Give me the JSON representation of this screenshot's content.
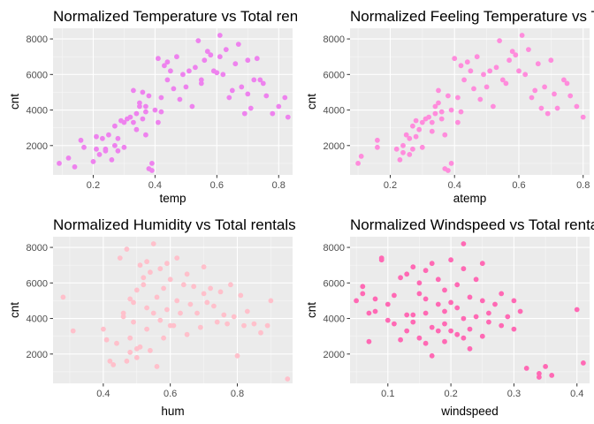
{
  "chart_data": [
    {
      "type": "scatter",
      "title": "Normalized Temperature vs Total rentals",
      "xlabel": "temp",
      "ylabel": "cnt",
      "xlim": [
        0.07,
        0.845
      ],
      "ylim": [
        350,
        8600
      ],
      "xticks": [
        "0.2",
        "0.4",
        "0.6",
        "0.8"
      ],
      "yticks": [
        "2000",
        "4000",
        "6000",
        "8000"
      ],
      "xtick_values": [
        0.2,
        0.4,
        0.6,
        0.8
      ],
      "ytick_values": [
        2000,
        4000,
        6000,
        8000
      ],
      "color": "#EE82EE",
      "x": [
        0.09,
        0.12,
        0.14,
        0.16,
        0.17,
        0.2,
        0.21,
        0.21,
        0.22,
        0.23,
        0.24,
        0.24,
        0.25,
        0.26,
        0.27,
        0.27,
        0.28,
        0.28,
        0.29,
        0.3,
        0.3,
        0.31,
        0.32,
        0.33,
        0.33,
        0.34,
        0.34,
        0.35,
        0.35,
        0.36,
        0.37,
        0.37,
        0.38,
        0.38,
        0.39,
        0.39,
        0.4,
        0.41,
        0.41,
        0.42,
        0.42,
        0.43,
        0.44,
        0.44,
        0.45,
        0.46,
        0.47,
        0.48,
        0.49,
        0.5,
        0.51,
        0.52,
        0.53,
        0.54,
        0.55,
        0.55,
        0.56,
        0.57,
        0.58,
        0.59,
        0.6,
        0.61,
        0.61,
        0.62,
        0.63,
        0.64,
        0.65,
        0.66,
        0.67,
        0.68,
        0.69,
        0.7,
        0.7,
        0.71,
        0.72,
        0.73,
        0.74,
        0.75,
        0.76,
        0.78,
        0.8,
        0.82,
        0.83,
        0.36,
        0.37
      ],
      "y": [
        1000,
        1300,
        800,
        2300,
        1900,
        1100,
        1800,
        2500,
        1500,
        2400,
        1700,
        1800,
        2600,
        1200,
        2000,
        3100,
        1700,
        2400,
        3400,
        3300,
        1900,
        3500,
        3600,
        3300,
        5100,
        2900,
        3800,
        4400,
        4200,
        3500,
        2600,
        3900,
        700,
        4800,
        600,
        1000,
        4000,
        6900,
        3300,
        3900,
        4700,
        6500,
        5700,
        6700,
        6200,
        5200,
        7000,
        4600,
        6000,
        5300,
        6200,
        4200,
        6400,
        7900,
        5700,
        5500,
        6800,
        7300,
        7100,
        6200,
        6100,
        7000,
        8200,
        6000,
        7400,
        4700,
        5100,
        6600,
        7700,
        5300,
        3800,
        6800,
        4900,
        4100,
        5700,
        6900,
        5700,
        5500,
        4800,
        3800,
        4200,
        4700,
        3600,
        5000,
        4200
      ]
    },
    {
      "type": "scatter",
      "title": "Normalized Feeling Temperature vs Total rentals",
      "xlabel": "atemp",
      "ylabel": "cnt",
      "xlim": [
        0.075,
        0.82
      ],
      "ylim": [
        350,
        8600
      ],
      "xticks": [
        "0.2",
        "0.4",
        "0.6",
        "0.8"
      ],
      "yticks": [
        "2000",
        "4000",
        "6000",
        "8000"
      ],
      "xtick_values": [
        0.2,
        0.4,
        0.6,
        0.8
      ],
      "ytick_values": [
        2000,
        4000,
        6000,
        8000
      ],
      "color": "#FF8CDC",
      "x": [
        0.1,
        0.11,
        0.16,
        0.16,
        0.22,
        0.23,
        0.24,
        0.24,
        0.25,
        0.26,
        0.26,
        0.27,
        0.27,
        0.28,
        0.28,
        0.29,
        0.3,
        0.3,
        0.31,
        0.32,
        0.33,
        0.33,
        0.34,
        0.34,
        0.35,
        0.35,
        0.36,
        0.36,
        0.37,
        0.37,
        0.38,
        0.38,
        0.39,
        0.39,
        0.4,
        0.41,
        0.41,
        0.42,
        0.42,
        0.43,
        0.44,
        0.45,
        0.46,
        0.47,
        0.48,
        0.49,
        0.5,
        0.51,
        0.52,
        0.53,
        0.54,
        0.55,
        0.56,
        0.57,
        0.58,
        0.59,
        0.6,
        0.61,
        0.62,
        0.63,
        0.64,
        0.65,
        0.66,
        0.67,
        0.68,
        0.69,
        0.7,
        0.71,
        0.72,
        0.74,
        0.75,
        0.76,
        0.78,
        0.8
      ],
      "y": [
        1000,
        1400,
        1900,
        2300,
        1800,
        1200,
        2000,
        1600,
        2600,
        2400,
        1500,
        3100,
        1800,
        2500,
        3400,
        2900,
        3300,
        1900,
        3500,
        3600,
        3300,
        2800,
        3800,
        4200,
        4400,
        5100,
        3500,
        3900,
        2600,
        700,
        4800,
        600,
        1000,
        4000,
        6900,
        4700,
        3300,
        3900,
        6500,
        5700,
        6700,
        6200,
        5200,
        7000,
        4600,
        6000,
        5300,
        6200,
        4200,
        6400,
        7900,
        5700,
        5500,
        6800,
        7300,
        7100,
        6200,
        8200,
        6000,
        7400,
        4700,
        5100,
        6600,
        4100,
        5300,
        3800,
        6800,
        4900,
        4100,
        5700,
        5500,
        4800,
        4200,
        3600
      ]
    },
    {
      "type": "scatter",
      "title": "Normalized Humidity vs Total rentals",
      "xlabel": "hum",
      "ylabel": "cnt",
      "xlim": [
        0.25,
        0.965
      ],
      "ylim": [
        350,
        8600
      ],
      "xticks": [
        "0.4",
        "0.6",
        "0.8"
      ],
      "yticks": [
        "2000",
        "4000",
        "6000",
        "8000"
      ],
      "xtick_values": [
        0.4,
        0.6,
        0.8
      ],
      "ytick_values": [
        2000,
        4000,
        6000,
        8000
      ],
      "color": "#FFC0CB",
      "x": [
        0.28,
        0.31,
        0.4,
        0.41,
        0.42,
        0.43,
        0.44,
        0.45,
        0.46,
        0.47,
        0.47,
        0.48,
        0.48,
        0.49,
        0.49,
        0.5,
        0.5,
        0.51,
        0.51,
        0.52,
        0.52,
        0.53,
        0.53,
        0.54,
        0.54,
        0.55,
        0.55,
        0.56,
        0.56,
        0.57,
        0.57,
        0.58,
        0.58,
        0.59,
        0.59,
        0.6,
        0.61,
        0.62,
        0.62,
        0.63,
        0.64,
        0.65,
        0.65,
        0.66,
        0.67,
        0.68,
        0.69,
        0.7,
        0.7,
        0.71,
        0.72,
        0.73,
        0.74,
        0.75,
        0.76,
        0.77,
        0.78,
        0.79,
        0.8,
        0.81,
        0.82,
        0.83,
        0.85,
        0.87,
        0.89,
        0.9,
        0.95,
        0.46,
        0.48,
        0.5,
        0.53,
        0.6
      ],
      "y": [
        5200,
        3300,
        3400,
        2800,
        1600,
        1400,
        2600,
        7400,
        4100,
        1600,
        7900,
        2900,
        5100,
        4900,
        3800,
        5600,
        1800,
        7000,
        2400,
        6300,
        5900,
        3400,
        7200,
        2200,
        6600,
        8200,
        4300,
        5200,
        1300,
        6800,
        3900,
        5700,
        2900,
        7100,
        4500,
        6200,
        3600,
        5000,
        7400,
        4300,
        5900,
        3100,
        6500,
        4800,
        5800,
        4300,
        3500,
        5400,
        6900,
        4900,
        5700,
        4700,
        3800,
        5500,
        4200,
        3700,
        5900,
        4100,
        1900,
        5300,
        3600,
        4400,
        3700,
        3200,
        3600,
        5000,
        600,
        4300,
        2100,
        2300,
        4600,
        3600
      ]
    },
    {
      "type": "scatter",
      "title": "Normalized Windspeed vs Total rentals",
      "xlabel": "windspeed",
      "ylabel": "cnt",
      "xlim": [
        0.04,
        0.42
      ],
      "ylim": [
        350,
        8600
      ],
      "xticks": [
        "0.1",
        "0.2",
        "0.3",
        "0.4"
      ],
      "yticks": [
        "2000",
        "4000",
        "6000",
        "8000"
      ],
      "xtick_values": [
        0.1,
        0.2,
        0.3,
        0.4
      ],
      "ytick_values": [
        2000,
        4000,
        6000,
        8000
      ],
      "color": "#FF69B4",
      "x": [
        0.05,
        0.06,
        0.06,
        0.07,
        0.07,
        0.08,
        0.08,
        0.09,
        0.09,
        0.1,
        0.1,
        0.11,
        0.11,
        0.12,
        0.12,
        0.13,
        0.13,
        0.13,
        0.14,
        0.14,
        0.15,
        0.15,
        0.15,
        0.16,
        0.16,
        0.16,
        0.17,
        0.17,
        0.17,
        0.18,
        0.18,
        0.18,
        0.19,
        0.19,
        0.19,
        0.2,
        0.2,
        0.2,
        0.21,
        0.21,
        0.21,
        0.22,
        0.22,
        0.22,
        0.23,
        0.23,
        0.23,
        0.24,
        0.24,
        0.25,
        0.25,
        0.25,
        0.26,
        0.26,
        0.27,
        0.28,
        0.28,
        0.29,
        0.3,
        0.3,
        0.31,
        0.32,
        0.34,
        0.34,
        0.35,
        0.36,
        0.4,
        0.41,
        0.14,
        0.16,
        0.19,
        0.22
      ],
      "y": [
        5000,
        5400,
        5800,
        2700,
        4300,
        5100,
        4400,
        7300,
        7400,
        3900,
        4800,
        3700,
        5300,
        6300,
        2800,
        4200,
        6500,
        3300,
        6900,
        3800,
        2900,
        5400,
        6000,
        6700,
        2600,
        4300,
        3500,
        7100,
        1900,
        4800,
        6200,
        3300,
        5600,
        4400,
        2700,
        4900,
        7300,
        3300,
        5900,
        4600,
        3100,
        8200,
        6800,
        4000,
        5200,
        3400,
        2300,
        6200,
        4100,
        7100,
        5000,
        3000,
        4300,
        3800,
        4800,
        5400,
        3600,
        4100,
        3400,
        5000,
        4400,
        1200,
        900,
        700,
        1300,
        800,
        4500,
        1500,
        4200,
        5100,
        3700,
        2900
      ]
    }
  ]
}
